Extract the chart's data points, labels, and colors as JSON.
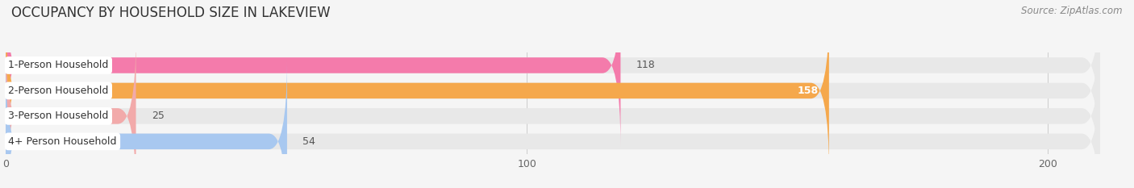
{
  "title": "OCCUPANCY BY HOUSEHOLD SIZE IN LAKEVIEW",
  "source": "Source: ZipAtlas.com",
  "categories": [
    "1-Person Household",
    "2-Person Household",
    "3-Person Household",
    "4+ Person Household"
  ],
  "values": [
    118,
    158,
    25,
    54
  ],
  "bar_colors": [
    "#f47bab",
    "#f5a84c",
    "#f2aaaa",
    "#a8c8f0"
  ],
  "xlim": [
    0,
    210
  ],
  "xticks": [
    0,
    100,
    200
  ],
  "bar_height": 0.62,
  "figsize": [
    14.06,
    2.33
  ],
  "dpi": 100,
  "title_fontsize": 12,
  "source_fontsize": 8.5,
  "label_fontsize": 9,
  "value_fontsize": 9,
  "tick_fontsize": 9,
  "bg_color": "#f5f5f5",
  "bar_bg_color": "#e8e8e8",
  "label_bg_color": "#ffffff"
}
